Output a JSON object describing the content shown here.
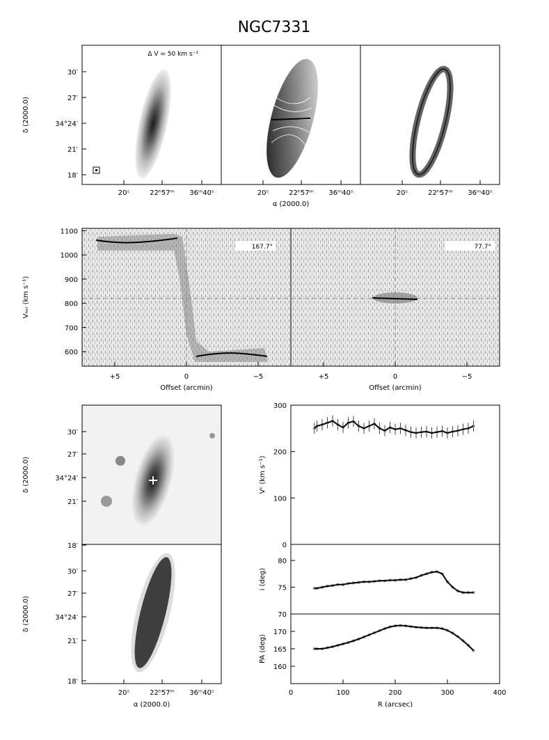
{
  "title": "NGC7331",
  "moment_maps": {
    "annotation": "Δ V = 50 km s⁻¹",
    "xticks": [
      "20ˢ",
      "22ʰ57ᵐ",
      "36ᵐ40ˢ"
    ],
    "yticks": [
      "30′",
      "27′",
      "34°24′",
      "21′",
      "18′"
    ],
    "xlabel": "α (2000.0)",
    "ylabel": "δ (2000.0)"
  },
  "pv": {
    "ylabel": "Vₕₑₗ (km s⁻¹)",
    "yticks": [
      "1100",
      "1000",
      "900",
      "800",
      "700",
      "600"
    ],
    "xticks": [
      "+5",
      "0",
      "−5"
    ],
    "xlabel": "Offset (arcmin)",
    "pa_major": "167.7°",
    "pa_minor": "77.7°",
    "systemic_velocity": 820
  },
  "optical": {
    "yticks": [
      "30′",
      "27′",
      "34°24′",
      "21′",
      "18′"
    ],
    "ylabel": "δ (2000.0)",
    "xticks": [
      "20ˢ",
      "22ʰ57ᵐ",
      "36ᵐ40ˢ"
    ],
    "xlabel": "α (2000.0)"
  },
  "chart_data": {
    "type": "scatter",
    "xlabel": "R (arcsec)",
    "xticks": [
      "0",
      "100",
      "200",
      "300",
      "400"
    ],
    "xlim": [
      0,
      400
    ],
    "panels": [
      {
        "ylabel": "Vᶜ (km s⁻¹)",
        "yticks": [
          "300",
          "200",
          "100",
          "0"
        ],
        "ylim": [
          0,
          300
        ],
        "x": [
          45,
          50,
          60,
          70,
          80,
          90,
          100,
          110,
          120,
          130,
          140,
          150,
          160,
          170,
          180,
          190,
          200,
          210,
          220,
          230,
          240,
          250,
          260,
          270,
          280,
          290,
          300,
          310,
          320,
          330,
          340,
          350
        ],
        "y": [
          250,
          255,
          258,
          262,
          266,
          258,
          252,
          262,
          265,
          255,
          250,
          255,
          260,
          250,
          245,
          252,
          248,
          250,
          246,
          242,
          240,
          242,
          243,
          240,
          242,
          244,
          240,
          243,
          245,
          248,
          250,
          255
        ]
      },
      {
        "ylabel": "i (deg)",
        "yticks": [
          "80",
          "75",
          "70"
        ],
        "ylim": [
          70,
          83
        ],
        "x": [
          45,
          50,
          60,
          70,
          80,
          90,
          100,
          110,
          120,
          130,
          140,
          150,
          160,
          170,
          180,
          190,
          200,
          210,
          220,
          230,
          240,
          250,
          260,
          270,
          280,
          290,
          300,
          310,
          320,
          330,
          340,
          350
        ],
        "y": [
          74.8,
          74.8,
          75.0,
          75.2,
          75.3,
          75.5,
          75.5,
          75.7,
          75.8,
          75.9,
          76.0,
          76.0,
          76.1,
          76.2,
          76.2,
          76.3,
          76.3,
          76.4,
          76.4,
          76.6,
          76.8,
          77.2,
          77.5,
          77.8,
          77.9,
          77.5,
          76.0,
          75.0,
          74.3,
          74.0,
          74.0,
          74.0
        ]
      },
      {
        "ylabel": "PA (deg)",
        "yticks": [
          "170",
          "165",
          "160"
        ],
        "ylim": [
          155,
          175
        ],
        "x": [
          45,
          50,
          60,
          70,
          80,
          90,
          100,
          110,
          120,
          130,
          140,
          150,
          160,
          170,
          180,
          190,
          200,
          210,
          220,
          230,
          240,
          250,
          260,
          270,
          280,
          290,
          300,
          310,
          320,
          330,
          340,
          350
        ],
        "y": [
          165,
          165,
          165,
          165.3,
          165.6,
          166,
          166.4,
          166.8,
          167.3,
          167.8,
          168.4,
          169,
          169.6,
          170.2,
          170.8,
          171.3,
          171.6,
          171.7,
          171.6,
          171.4,
          171.2,
          171.1,
          171.0,
          171.0,
          171.0,
          170.8,
          170.3,
          169.5,
          168.5,
          167.3,
          166,
          164.5
        ]
      }
    ]
  }
}
